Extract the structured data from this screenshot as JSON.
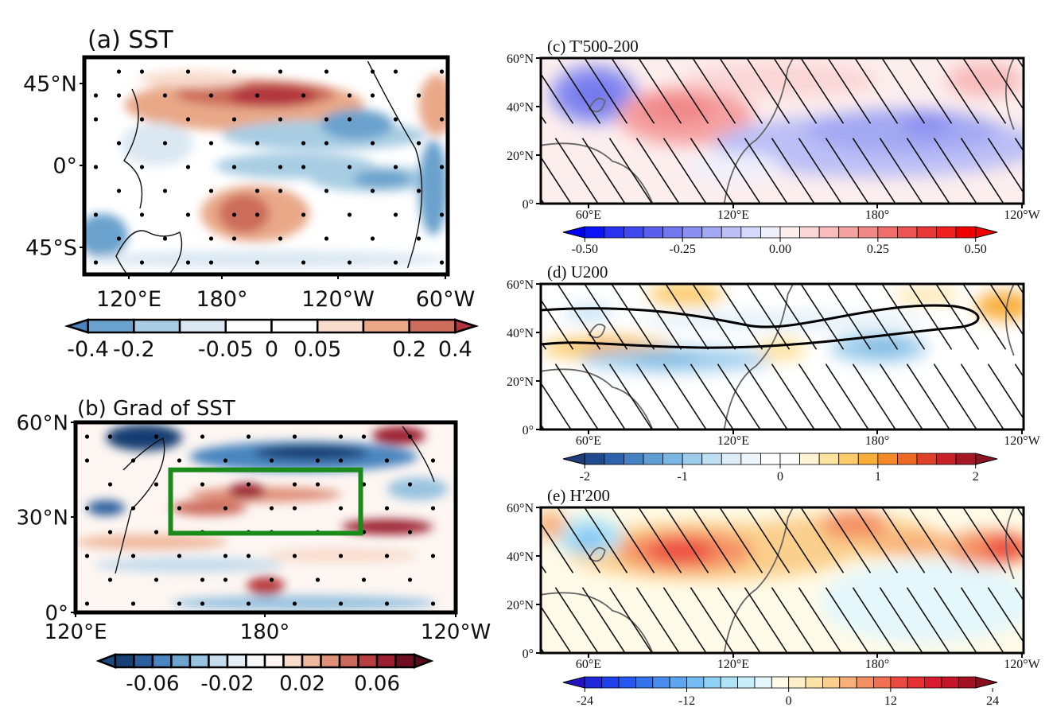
{
  "figure": {
    "description": "Multi-panel climate anomaly maps (regression/composite fields)"
  },
  "chart_data": [
    {
      "id": "a",
      "type": "heatmap",
      "title": "(a) SST",
      "map_region": "Pacific basin, ~60°S–60°N, ~100°E–60°W",
      "xticks": [
        "120°E",
        "180°",
        "120°W",
        "60°W"
      ],
      "yticks": [
        "45°N",
        "0°",
        "45°S"
      ],
      "stippling": "significance dots",
      "colorbar": {
        "levels": [
          -0.4,
          -0.2,
          -0.1,
          -0.05,
          0,
          0.05,
          0.1,
          0.2,
          0.4
        ],
        "tick_labels": [
          "-0.4",
          "-0.2",
          "-0.05",
          "0",
          "0.05",
          "0.2",
          "0.4"
        ],
        "colors": [
          "#4a83bd",
          "#6aa2cd",
          "#a8cde3",
          "#dbe8f2",
          "#ffffff",
          "#ffffff",
          "#f8dccd",
          "#e9a989",
          "#cc6c5a",
          "#b2343d"
        ],
        "extend": "both"
      },
      "features": [
        {
          "label": "warm anomaly",
          "center": "40°N, 180°–150°W",
          "value": 0.3
        },
        {
          "label": "cold anomaly",
          "center": "10°N–20°N, 150°W–120°W",
          "value": -0.15
        },
        {
          "label": "cold anomaly",
          "center": "10°S, 120°W–100°W",
          "value": -0.2
        },
        {
          "label": "warm anomaly",
          "center": "30°S, 170°E–150°W",
          "value": 0.2
        },
        {
          "label": "cold anomaly",
          "center": "45°S, 100°E–120°E",
          "value": -0.15
        }
      ]
    },
    {
      "id": "b",
      "type": "heatmap",
      "title": "(b) Grad of SST",
      "map_region": "North Pacific, 0°–60°N, 120°E–120°W",
      "xticks": [
        "120°E",
        "180°",
        "120°W"
      ],
      "yticks": [
        "60°N",
        "30°N",
        "0°"
      ],
      "stippling": "significance dots",
      "box": {
        "lat": [
          25,
          45
        ],
        "lon": [
          150,
          210
        ],
        "color": "#1a8a1a"
      },
      "colorbar": {
        "levels": [
          -0.08,
          -0.07,
          -0.06,
          -0.05,
          -0.04,
          -0.03,
          -0.02,
          -0.01,
          0,
          0.01,
          0.02,
          0.03,
          0.04,
          0.05,
          0.06,
          0.07,
          0.08
        ],
        "tick_labels": [
          "-0.06",
          "-0.02",
          "0.02",
          "0.06"
        ],
        "colors": [
          "#1d4a80",
          "#153e72",
          "#2b5f9e",
          "#4a86c0",
          "#6fa4d0",
          "#99c3e0",
          "#c5dced",
          "#e4eef6",
          "#f7f9fb",
          "#fdf6f2",
          "#f8ddcd",
          "#efb99e",
          "#e0917a",
          "#cc6a5c",
          "#b94042",
          "#9c2032",
          "#6d0f20",
          "#5a0b1a"
        ],
        "extend": "both"
      },
      "features": [
        {
          "label": "negative band",
          "center": "45°N–50°N, 170°E–150°W",
          "value": -0.07
        },
        {
          "label": "positive band",
          "center": "35°N, 160°E–170°W",
          "value": 0.05
        },
        {
          "label": "positive band",
          "center": "28°N, 150°W–130°W",
          "value": 0.07
        }
      ]
    },
    {
      "id": "c",
      "type": "heatmap",
      "title": "(c) T'500-200",
      "map_region": "0°–60°N, 40°E–120°W",
      "xticks": [
        "60°E",
        "120°E",
        "180°",
        "120°W"
      ],
      "yticks": [
        "60°N",
        "40°N",
        "20°N",
        "0°"
      ],
      "hatching": "diagonal lines (significant)",
      "colorbar": {
        "levels": [
          -0.5,
          -0.45,
          -0.4,
          -0.35,
          -0.3,
          -0.25,
          -0.2,
          -0.15,
          -0.1,
          -0.05,
          0,
          0.05,
          0.1,
          0.15,
          0.2,
          0.25,
          0.3,
          0.35,
          0.4,
          0.45,
          0.5
        ],
        "tick_labels": [
          "-0.50",
          "-0.25",
          "0.00",
          "0.25",
          "0.50"
        ],
        "colors": [
          "#0000f0",
          "#0a14f5",
          "#2a32f0",
          "#4048ee",
          "#5a60ec",
          "#7378ee",
          "#8b90f0",
          "#a3a8f3",
          "#bcbff6",
          "#d6d8fa",
          "#efeffc",
          "#fdeeee",
          "#fbd6d6",
          "#f8bcbc",
          "#f5a2a2",
          "#f18888",
          "#ee6e6e",
          "#ea5454",
          "#e83838",
          "#ee2020",
          "#f00000",
          "#f00000"
        ],
        "extend": "both"
      },
      "features": [
        {
          "label": "cold anomaly",
          "center": "45°N, 60°E",
          "value": -0.3
        },
        {
          "label": "warm anomaly",
          "center": "40°N, 100°E",
          "value": 0.2
        },
        {
          "label": "cold anomaly",
          "center": "35°N, 180°–150°W",
          "value": -0.25
        }
      ]
    },
    {
      "id": "d",
      "type": "heatmap",
      "title": "(d) U200",
      "map_region": "0°–60°N, 40°E–120°W",
      "xticks": [
        "60°E",
        "120°E",
        "180°",
        "120°W"
      ],
      "yticks": [
        "60°N",
        "40°N",
        "20°N",
        "0°"
      ],
      "hatching": "diagonal lines (significant)",
      "contour": "climatological jet core (thick black)",
      "colorbar": {
        "levels": [
          -2,
          -1.8,
          -1.6,
          -1.4,
          -1.2,
          -1,
          -0.8,
          -0.6,
          -0.4,
          -0.2,
          0,
          0.2,
          0.4,
          0.6,
          0.8,
          1,
          1.2,
          1.4,
          1.6,
          1.8,
          2
        ],
        "tick_labels": [
          "-2",
          "-1",
          "0",
          "1",
          "2"
        ],
        "colors": [
          "#1c3d7a",
          "#1f4a8e",
          "#2d62ad",
          "#4580c3",
          "#5f9dd3",
          "#7bb7e3",
          "#9ccceb",
          "#bfdff2",
          "#dcedf8",
          "#eef6fb",
          "#ffffff",
          "#ffffff",
          "#fff4d6",
          "#fde3a0",
          "#fccb6c",
          "#f9ad3a",
          "#f38a2a",
          "#ec6a26",
          "#de4128",
          "#c62228",
          "#a31824",
          "#8a1420"
        ],
        "extend": "both"
      },
      "features": [
        {
          "label": "westerly increase",
          "center": "42°N, 60°E–80°E",
          "value": 0.9
        },
        {
          "label": "westerly increase",
          "center": "58°N, 95°E",
          "value": 0.8
        },
        {
          "label": "westerly decrease",
          "center": "30°N, 90°E–110°E",
          "value": -0.7
        },
        {
          "label": "westerly decrease",
          "center": "42°N, 180°",
          "value": -0.8
        },
        {
          "label": "westerly increase",
          "center": "52°N, 125°W",
          "value": 0.8
        }
      ]
    },
    {
      "id": "e",
      "type": "heatmap",
      "title": "(e) H'200",
      "map_region": "0°–60°N, 40°E–120°W",
      "xticks": [
        "60°E",
        "120°E",
        "180°",
        "120°W"
      ],
      "yticks": [
        "60°N",
        "40°N",
        "20°N",
        "0°"
      ],
      "hatching": "diagonal lines (significant)",
      "colorbar": {
        "levels": [
          -24,
          -22,
          -20,
          -18,
          -16,
          -14,
          -12,
          -10,
          -8,
          -6,
          -4,
          -2,
          0,
          2,
          4,
          6,
          8,
          10,
          12,
          14,
          16,
          18,
          20,
          22,
          24
        ],
        "tick_labels": [
          "-24",
          "-12",
          "0",
          "12",
          "24"
        ],
        "colors": [
          "#2213c2",
          "#1f28d8",
          "#1e40ea",
          "#2458f0",
          "#3472ee",
          "#4a8ced",
          "#5ea6f0",
          "#74bcf3",
          "#8fd2f6",
          "#aee3f8",
          "#c8eefa",
          "#e3f7fc",
          "#fffbe8",
          "#fdf0c8",
          "#fce3a6",
          "#fbcf8c",
          "#f8b078",
          "#f49064",
          "#f07052",
          "#ec4a40",
          "#e63034",
          "#d81c2e",
          "#c41628",
          "#a50f22",
          "#8a0c1c"
        ],
        "extend": "both"
      },
      "features": [
        {
          "label": "positive height",
          "center": "42°N, 100°E",
          "value": 18
        },
        {
          "label": "negative height",
          "center": "48°N, 70°E",
          "value": -8
        },
        {
          "label": "positive height",
          "center": "55°N, 160°E",
          "value": 12
        },
        {
          "label": "positive height",
          "center": "42°N, 125°W",
          "value": 14
        },
        {
          "label": "negative height",
          "center": "15°N, 170°W",
          "value": -2
        }
      ]
    }
  ]
}
